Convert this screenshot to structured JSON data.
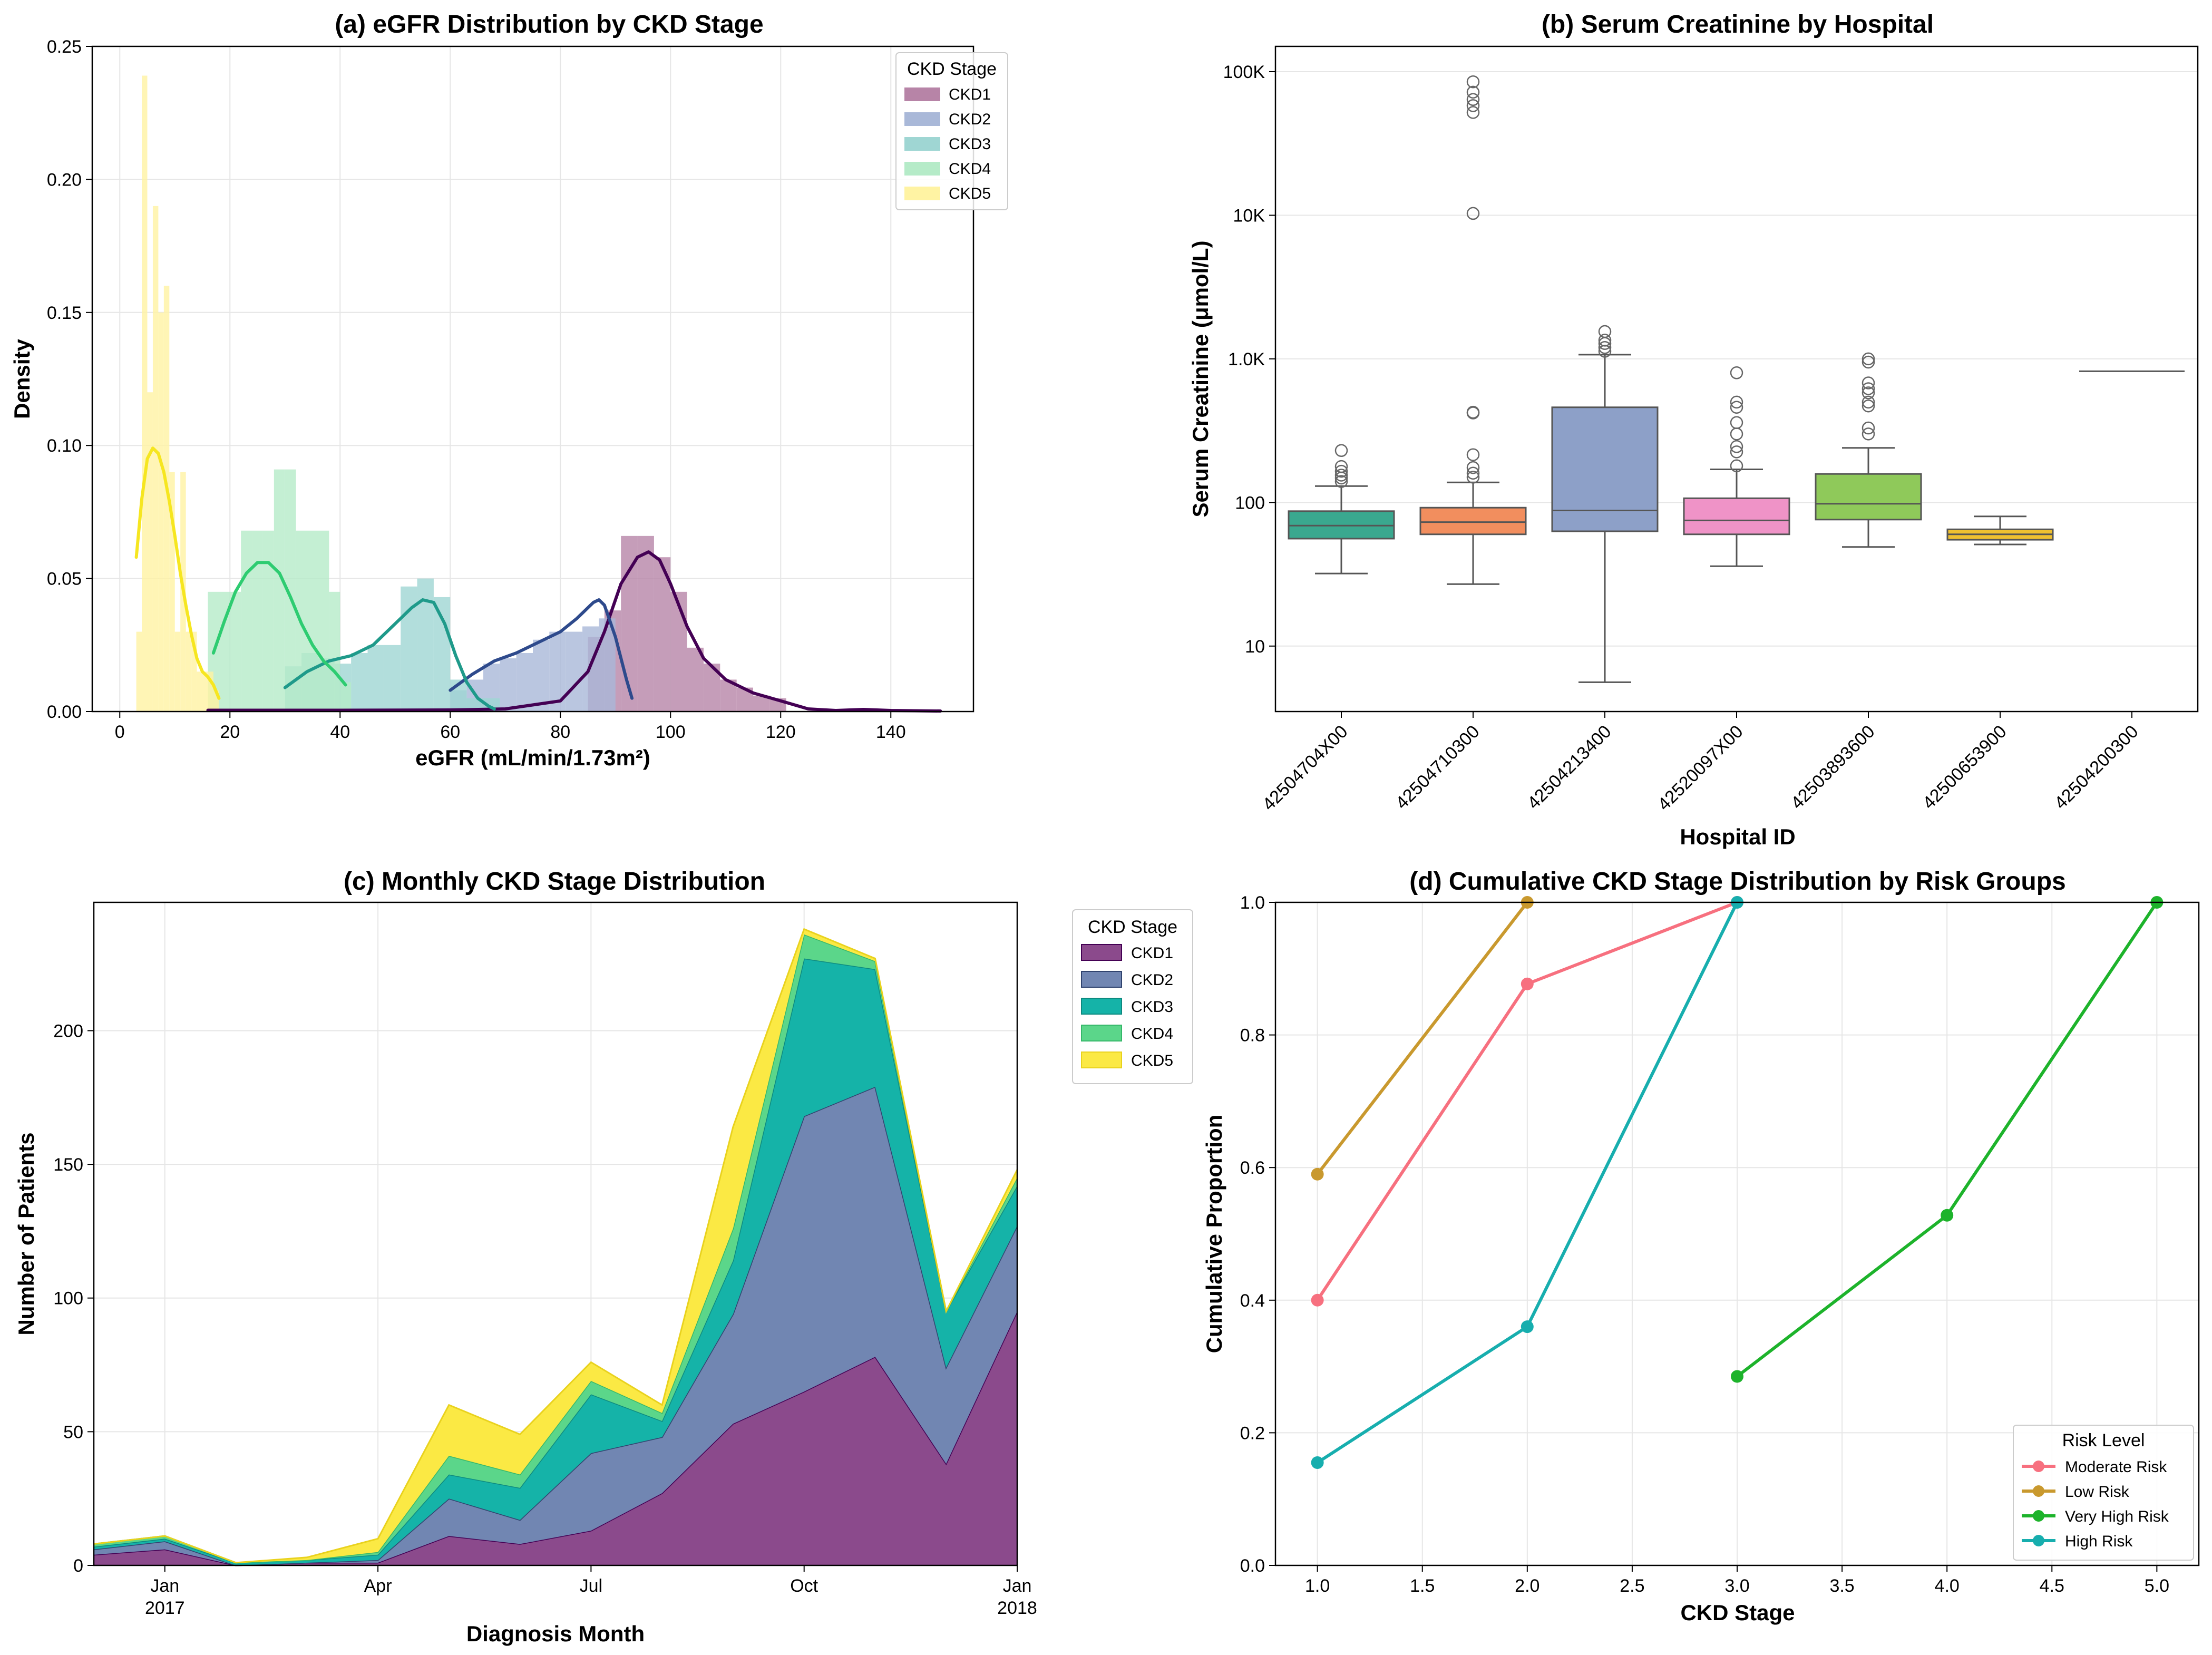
{
  "chart_data": [
    {
      "id": "a",
      "type": "histogram+kde",
      "title": "(a) eGFR Distribution by CKD Stage",
      "xlabel": "eGFR (mL/min/1.73m²)",
      "ylabel": "Density",
      "xlim": [
        -5,
        155
      ],
      "ylim": [
        0,
        0.25
      ],
      "xticks": [
        0,
        20,
        40,
        60,
        80,
        100,
        120,
        140
      ],
      "yticks": [
        0.0,
        0.05,
        0.1,
        0.15,
        0.2,
        0.25
      ],
      "ytick_labels": [
        "0.00",
        "0.05",
        "0.10",
        "0.15",
        "0.20",
        "0.25"
      ],
      "legend_title": "CKD Stage",
      "legend_position": "upper right",
      "series": [
        {
          "name": "CKD1",
          "hist_color": "#b784a7",
          "line_color": "#440154",
          "bins": [
            [
              85,
              88,
              0.028
            ],
            [
              88,
              91,
              0.038
            ],
            [
              91,
              94,
              0.066
            ],
            [
              94,
              97,
              0.066
            ],
            [
              97,
              100,
              0.058
            ],
            [
              100,
              103,
              0.045
            ],
            [
              103,
              106,
              0.024
            ],
            [
              106,
              109,
              0.018
            ],
            [
              109,
              112,
              0.012
            ],
            [
              112,
              115,
              0.009
            ],
            [
              115,
              118,
              0.006
            ],
            [
              118,
              121,
              0.005
            ]
          ],
          "kde": [
            [
              16,
              0.0005
            ],
            [
              40,
              0.0005
            ],
            [
              60,
              0.0006
            ],
            [
              70,
              0.001
            ],
            [
              80,
              0.004
            ],
            [
              85,
              0.015
            ],
            [
              88,
              0.03
            ],
            [
              91,
              0.048
            ],
            [
              94,
              0.058
            ],
            [
              96,
              0.06
            ],
            [
              98,
              0.057
            ],
            [
              100,
              0.048
            ],
            [
              103,
              0.032
            ],
            [
              106,
              0.02
            ],
            [
              110,
              0.012
            ],
            [
              115,
              0.007
            ],
            [
              120,
              0.004
            ],
            [
              125,
              0.001
            ],
            [
              130,
              0.0004
            ],
            [
              135,
              0.0008
            ],
            [
              140,
              0.0004
            ],
            [
              149,
              0.0002
            ]
          ]
        },
        {
          "name": "CKD2",
          "hist_color": "#a9b8d8",
          "line_color": "#2e4a8c",
          "bins": [
            [
              60,
              63,
              0.008
            ],
            [
              63,
              66,
              0.012
            ],
            [
              66,
              69,
              0.018
            ],
            [
              69,
              72,
              0.02
            ],
            [
              72,
              75,
              0.022
            ],
            [
              75,
              78,
              0.027
            ],
            [
              78,
              81,
              0.03
            ],
            [
              81,
              84,
              0.03
            ],
            [
              84,
              87,
              0.032
            ],
            [
              87,
              90,
              0.035
            ]
          ],
          "kde": [
            [
              60,
              0.008
            ],
            [
              64,
              0.014
            ],
            [
              68,
              0.019
            ],
            [
              72,
              0.022
            ],
            [
              76,
              0.026
            ],
            [
              80,
              0.03
            ],
            [
              83,
              0.035
            ],
            [
              86,
              0.041
            ],
            [
              87,
              0.042
            ],
            [
              88,
              0.04
            ],
            [
              90,
              0.028
            ],
            [
              92,
              0.012
            ],
            [
              93,
              0.005
            ]
          ]
        },
        {
          "name": "CKD3",
          "hist_color": "#9fd6d3",
          "line_color": "#1f9a8a",
          "bins": [
            [
              30,
              33,
              0.017
            ],
            [
              33,
              36,
              0.022
            ],
            [
              36,
              39,
              0.02
            ],
            [
              39,
              42,
              0.018
            ],
            [
              42,
              45,
              0.022
            ],
            [
              45,
              48,
              0.025
            ],
            [
              48,
              51,
              0.025
            ],
            [
              51,
              54,
              0.047
            ],
            [
              54,
              57,
              0.05
            ],
            [
              57,
              60,
              0.043
            ],
            [
              60,
              63,
              0.012
            ],
            [
              63,
              66,
              0.005
            ],
            [
              66,
              69,
              0.005
            ]
          ],
          "kde": [
            [
              30,
              0.009
            ],
            [
              34,
              0.015
            ],
            [
              38,
              0.019
            ],
            [
              42,
              0.021
            ],
            [
              46,
              0.025
            ],
            [
              50,
              0.033
            ],
            [
              53,
              0.039
            ],
            [
              55,
              0.042
            ],
            [
              57,
              0.041
            ],
            [
              59,
              0.033
            ],
            [
              61,
              0.021
            ],
            [
              63,
              0.011
            ],
            [
              65,
              0.005
            ],
            [
              67,
              0.002
            ],
            [
              68,
              0.001
            ]
          ]
        },
        {
          "name": "CKD4",
          "hist_color": "#b5ebc8",
          "line_color": "#2ecc71",
          "bins": [
            [
              16,
              18,
              0.045
            ],
            [
              18,
              20,
              0.045
            ],
            [
              20,
              22,
              0.045
            ],
            [
              22,
              24,
              0.068
            ],
            [
              24,
              26,
              0.068
            ],
            [
              26,
              28,
              0.068
            ],
            [
              28,
              30,
              0.091
            ],
            [
              30,
              32,
              0.091
            ],
            [
              32,
              34,
              0.068
            ],
            [
              34,
              36,
              0.068
            ],
            [
              36,
              38,
              0.068
            ],
            [
              38,
              40,
              0.045
            ],
            [
              40,
              42,
              0.011
            ]
          ],
          "kde": [
            [
              17,
              0.022
            ],
            [
              19,
              0.034
            ],
            [
              21,
              0.045
            ],
            [
              23,
              0.052
            ],
            [
              25,
              0.056
            ],
            [
              27,
              0.056
            ],
            [
              29,
              0.052
            ],
            [
              31,
              0.043
            ],
            [
              33,
              0.033
            ],
            [
              35,
              0.025
            ],
            [
              37,
              0.019
            ],
            [
              39,
              0.015
            ],
            [
              41,
              0.01
            ]
          ]
        },
        {
          "name": "CKD5",
          "hist_color": "#fff3a3",
          "line_color": "#f6e620",
          "bins": [
            [
              3,
              4,
              0.03
            ],
            [
              4,
              5,
              0.239
            ],
            [
              5,
              6,
              0.12
            ],
            [
              6,
              7,
              0.19
            ],
            [
              7,
              8,
              0.15
            ],
            [
              8,
              9,
              0.16
            ],
            [
              9,
              10,
              0.09
            ],
            [
              10,
              11,
              0.03
            ],
            [
              11,
              12,
              0.09
            ],
            [
              12,
              13,
              0.03
            ],
            [
              13,
              14,
              0.03
            ],
            [
              14,
              15,
              0.015
            ],
            [
              15,
              16,
              0.015
            ],
            [
              16,
              17,
              0.015
            ],
            [
              17,
              18,
              0.008
            ]
          ],
          "kde": [
            [
              3,
              0.058
            ],
            [
              4,
              0.08
            ],
            [
              5,
              0.095
            ],
            [
              6,
              0.099
            ],
            [
              7,
              0.097
            ],
            [
              8,
              0.09
            ],
            [
              9,
              0.079
            ],
            [
              10,
              0.066
            ],
            [
              11,
              0.052
            ],
            [
              12,
              0.04
            ],
            [
              13,
              0.029
            ],
            [
              14,
              0.02
            ],
            [
              15,
              0.015
            ],
            [
              16,
              0.013
            ],
            [
              17,
              0.01
            ],
            [
              18,
              0.005
            ]
          ]
        }
      ]
    },
    {
      "id": "b",
      "type": "boxplot",
      "title": "(b) Serum Creatinine by Hospital",
      "xlabel": "Hospital ID",
      "ylabel": "Serum Creatinine (μmol/L)",
      "yscale": "log",
      "ylim": [
        3.5,
        150000
      ],
      "yticks": [
        10,
        100,
        1000,
        10000,
        100000
      ],
      "ytick_labels": [
        "10",
        "100",
        "1.0K",
        "10K",
        "100K"
      ],
      "categories": [
        "42504704X00",
        "42504710300",
        "42504213400",
        "42520097X00",
        "42503893600",
        "42500653900",
        "42504200300"
      ],
      "boxes": [
        {
          "color": "#3aa88f",
          "q1": 56,
          "median": 69,
          "q3": 87,
          "whisker_low": 32,
          "whisker_high": 130,
          "outliers": [
            140,
            148,
            155,
            165,
            178,
            230
          ]
        },
        {
          "color": "#f28e5e",
          "q1": 60,
          "median": 73,
          "q3": 92,
          "whisker_low": 27,
          "whisker_high": 138,
          "outliers": [
            150,
            160,
            175,
            215,
            420,
            425,
            10300,
            52000,
            58000,
            64000,
            72000,
            85000
          ]
        },
        {
          "color": "#8da0c8",
          "q1": 63,
          "median": 88,
          "q3": 460,
          "whisker_low": 5.6,
          "whisker_high": 1070,
          "outliers": [
            1130,
            1200,
            1280,
            1350,
            1550
          ]
        },
        {
          "color": "#ef93c7",
          "q1": 60,
          "median": 75,
          "q3": 107,
          "whisker_low": 36,
          "whisker_high": 170,
          "outliers": [
            180,
            225,
            245,
            300,
            360,
            460,
            500,
            800
          ]
        },
        {
          "color": "#8fc95a",
          "q1": 76,
          "median": 98,
          "q3": 158,
          "whisker_low": 49,
          "whisker_high": 240,
          "outliers": [
            300,
            330,
            470,
            500,
            580,
            620,
            680,
            950,
            1000
          ]
        },
        {
          "color": "#efc030",
          "q1": 55,
          "median": 60,
          "q3": 65,
          "whisker_low": 51,
          "whisker_high": 80,
          "outliers": []
        },
        {
          "color": "#e5c494",
          "q1": 820,
          "median": 820,
          "q3": 820,
          "whisker_low": 820,
          "whisker_high": 820,
          "outliers": []
        }
      ]
    },
    {
      "id": "c",
      "type": "stacked-area",
      "title": "(c) Monthly CKD Stage Distribution",
      "xlabel": "Diagnosis Month",
      "ylabel": "Number of Patients",
      "ylim": [
        0,
        248
      ],
      "yticks": [
        0,
        50,
        100,
        150,
        200
      ],
      "months": [
        "2016-12",
        "2017-01",
        "2017-02",
        "2017-03",
        "2017-04",
        "2017-05",
        "2017-06",
        "2017-07",
        "2017-08",
        "2017-09",
        "2017-10",
        "2017-11",
        "2017-12",
        "2018-01"
      ],
      "xticks": [
        {
          "month_index": 1,
          "label": "Jan",
          "sublabel": "2017"
        },
        {
          "month_index": 4,
          "label": "Apr",
          "sublabel": ""
        },
        {
          "month_index": 7,
          "label": "Jul",
          "sublabel": ""
        },
        {
          "month_index": 10,
          "label": "Oct",
          "sublabel": ""
        },
        {
          "month_index": 13,
          "label": "Jan",
          "sublabel": "2018"
        }
      ],
      "legend_title": "CKD Stage",
      "legend_position": "outside right",
      "series": [
        {
          "name": "CKD1",
          "fill": "#8b4a8c",
          "edge": "#440154",
          "values": [
            4,
            6,
            0,
            1,
            1,
            11,
            8,
            13,
            27,
            53,
            65,
            78,
            38,
            95
          ]
        },
        {
          "name": "CKD2",
          "fill": "#7186b2",
          "edge": "#31446f",
          "values": [
            2,
            3,
            0,
            0,
            1,
            14,
            9,
            29,
            21,
            41,
            103,
            101,
            36,
            32
          ]
        },
        {
          "name": "CKD3",
          "fill": "#15b3a8",
          "edge": "#0d8a80",
          "values": [
            1,
            1,
            1,
            1,
            2,
            9,
            12,
            22,
            6,
            20,
            59,
            44,
            21,
            15
          ]
        },
        {
          "name": "CKD4",
          "fill": "#5bd68a",
          "edge": "#36b86a",
          "values": [
            1,
            1,
            0,
            0,
            1,
            7,
            5,
            5,
            3,
            12,
            9,
            3,
            0,
            3
          ]
        },
        {
          "name": "CKD5",
          "fill": "#fbe944",
          "edge": "#e9d21d",
          "values": [
            0,
            0,
            0,
            1,
            5,
            19,
            15,
            7,
            3,
            38,
            2,
            1,
            0,
            3
          ]
        }
      ]
    },
    {
      "id": "d",
      "type": "line",
      "title": "(d) Cumulative CKD Stage Distribution by Risk Groups",
      "xlabel": "CKD Stage",
      "ylabel": "Cumulative Proportion",
      "xlim": [
        0.8,
        5.2
      ],
      "ylim": [
        0,
        1
      ],
      "xticks": [
        1.0,
        1.5,
        2.0,
        2.5,
        3.0,
        3.5,
        4.0,
        4.5,
        5.0
      ],
      "xtick_labels": [
        "1.0",
        "1.5",
        "2.0",
        "2.5",
        "3.0",
        "3.5",
        "4.0",
        "4.5",
        "5.0"
      ],
      "yticks": [
        0.0,
        0.2,
        0.4,
        0.6,
        0.8,
        1.0
      ],
      "ytick_labels": [
        "0.0",
        "0.2",
        "0.4",
        "0.6",
        "0.8",
        "1.0"
      ],
      "legend_title": "Risk Level",
      "legend_position": "lower right",
      "series": [
        {
          "name": "Moderate Risk",
          "color": "#f7707f",
          "x": [
            1,
            2,
            3
          ],
          "y": [
            0.4,
            0.877,
            1.0
          ]
        },
        {
          "name": "Low Risk",
          "color": "#c9992e",
          "x": [
            1,
            2
          ],
          "y": [
            0.59,
            1.0
          ]
        },
        {
          "name": "Very High Risk",
          "color": "#1db32b",
          "x": [
            3,
            4,
            5
          ],
          "y": [
            0.285,
            0.528,
            1.0
          ]
        },
        {
          "name": "High Risk",
          "color": "#17aeae",
          "x": [
            1,
            2,
            3
          ],
          "y": [
            0.155,
            0.36,
            1.0
          ]
        }
      ]
    }
  ]
}
